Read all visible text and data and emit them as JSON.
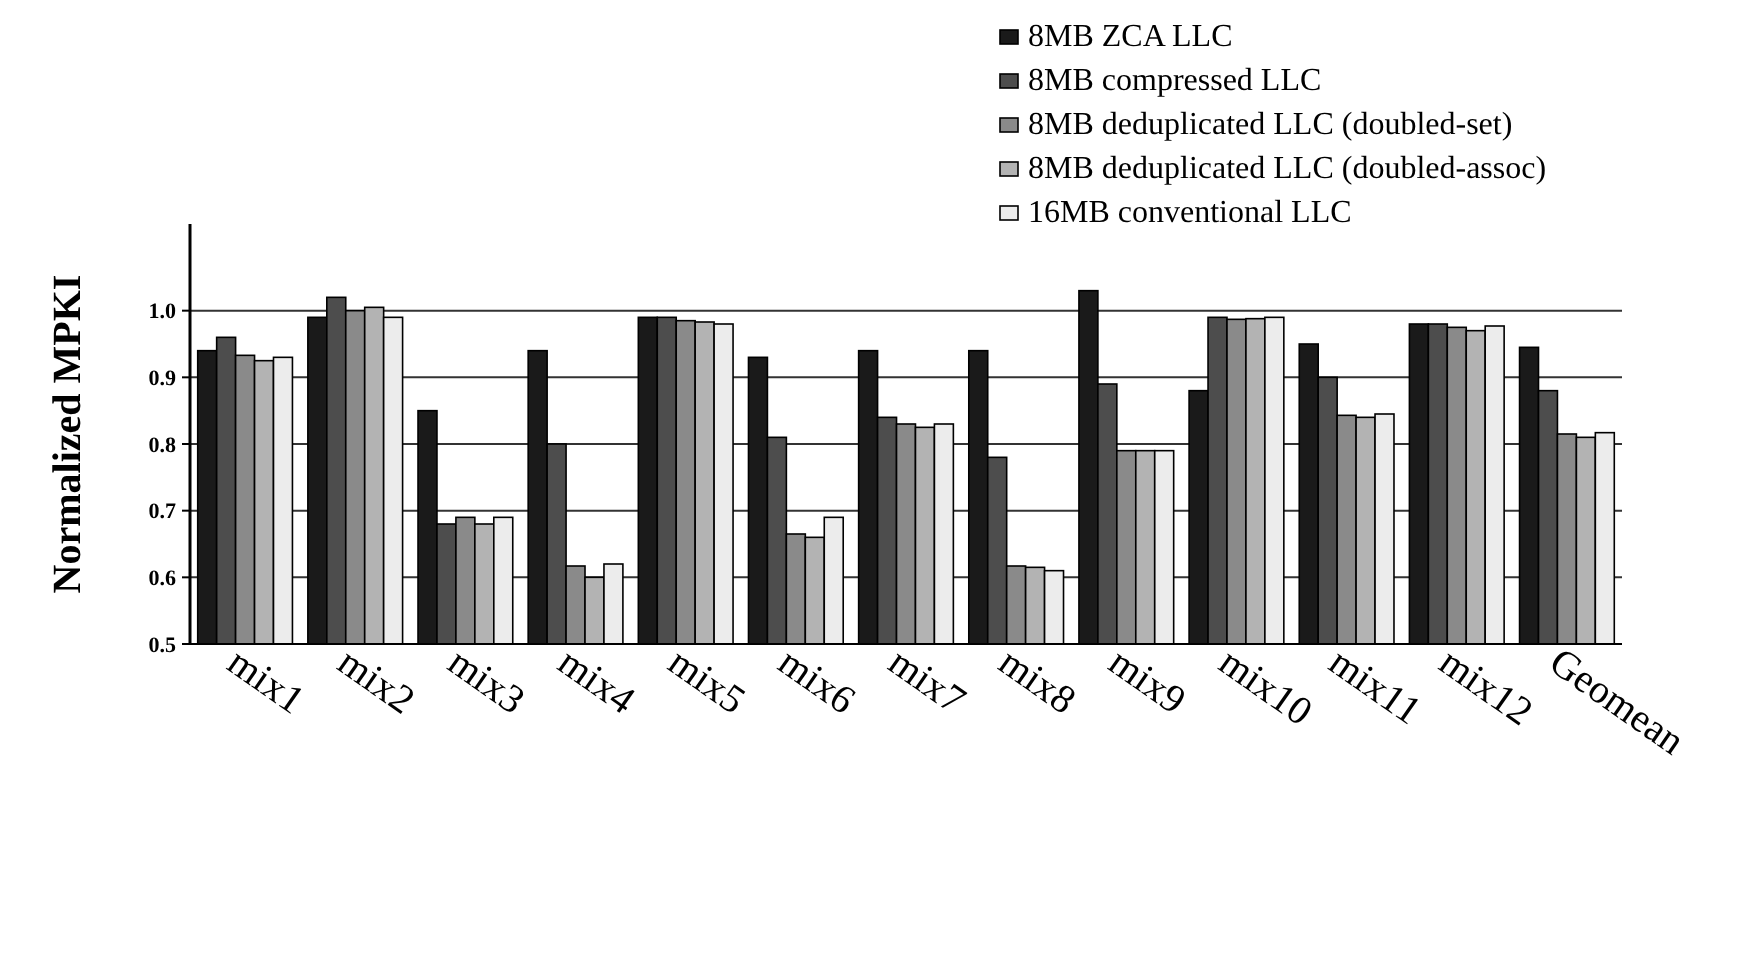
{
  "chart_data": {
    "type": "bar",
    "ylabel": "Normalized MPKI",
    "categories": [
      "mix1",
      "mix2",
      "mix3",
      "mix4",
      "mix5",
      "mix6",
      "mix7",
      "mix8",
      "mix9",
      "mix10",
      "mix11",
      "mix12",
      "Geomean"
    ],
    "series": [
      {
        "name": "8MB ZCA LLC",
        "color": "#1a1a1a",
        "values": [
          0.94,
          0.99,
          0.85,
          0.94,
          0.99,
          0.93,
          0.94,
          0.94,
          1.03,
          0.88,
          0.95,
          0.98,
          0.945
        ]
      },
      {
        "name": "8MB compressed LLC",
        "color": "#4d4d4d",
        "values": [
          0.96,
          1.02,
          0.68,
          0.8,
          0.99,
          0.81,
          0.84,
          0.78,
          0.89,
          0.99,
          0.9,
          0.98,
          0.88
        ]
      },
      {
        "name": "8MB deduplicated LLC (doubled-set)",
        "color": "#8a8a8a",
        "values": [
          0.933,
          1.0,
          0.69,
          0.617,
          0.985,
          0.665,
          0.83,
          0.617,
          0.79,
          0.987,
          0.843,
          0.975,
          0.815
        ]
      },
      {
        "name": "8MB deduplicated LLC (doubled-assoc)",
        "color": "#b3b3b3",
        "values": [
          0.925,
          1.005,
          0.68,
          0.6,
          0.983,
          0.66,
          0.825,
          0.615,
          0.79,
          0.988,
          0.84,
          0.97,
          0.81
        ]
      },
      {
        "name": "16MB conventional LLC",
        "color": "#ececec",
        "values": [
          0.93,
          0.99,
          0.69,
          0.62,
          0.98,
          0.69,
          0.83,
          0.61,
          0.79,
          0.99,
          0.845,
          0.977,
          0.817
        ]
      }
    ],
    "ylim": [
      0.5,
      1.13
    ],
    "yticks": [
      0.5,
      0.6,
      0.7,
      0.8,
      0.9,
      {
        "value": 1,
        "label": "1.0"
      }
    ],
    "grid": "y",
    "legend": "top right"
  }
}
